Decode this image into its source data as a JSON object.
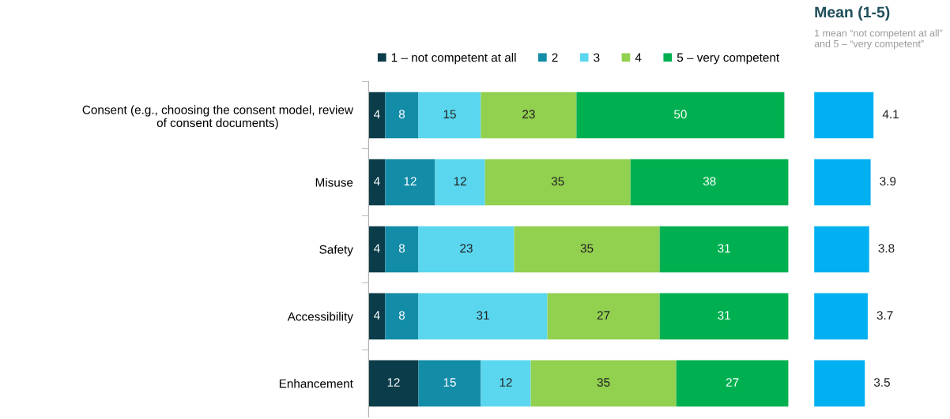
{
  "chart_data": [
    {
      "type": "bar",
      "orientation": "horizontal",
      "stacked": true,
      "data_labels": true,
      "legend": "top",
      "tick_labels": "y",
      "categories": [
        "Consent (e.g., choosing the consent model, review of consent documents)",
        "Misuse",
        "Safety",
        "Accessibility",
        "Enhancement"
      ],
      "series": [
        {
          "name": "1 – not competent at all",
          "color": "#0b3c49",
          "values": [
            4,
            4,
            4,
            4,
            12
          ]
        },
        {
          "name": "2",
          "color": "#138ca8",
          "values": [
            8,
            12,
            8,
            8,
            15
          ]
        },
        {
          "name": "3",
          "color": "#5ad7ef",
          "values": [
            15,
            12,
            23,
            31,
            12
          ]
        },
        {
          "name": "4",
          "color": "#92d050",
          "values": [
            23,
            35,
            35,
            27,
            35
          ]
        },
        {
          "name": "5 – very competent",
          "color": "#00b050",
          "values": [
            50,
            38,
            31,
            31,
            27
          ]
        }
      ]
    },
    {
      "type": "bar",
      "orientation": "horizontal",
      "data_labels": true,
      "tick_labels": false,
      "title": "Mean (1-5)",
      "subtitle": "1 mean “not competent at all” and 5 – “very competent”",
      "categories": [
        null,
        null,
        null,
        null,
        null
      ],
      "color": "#00b0f0",
      "values": [
        4.1,
        3.9,
        3.8,
        3.7,
        3.5
      ]
    }
  ]
}
